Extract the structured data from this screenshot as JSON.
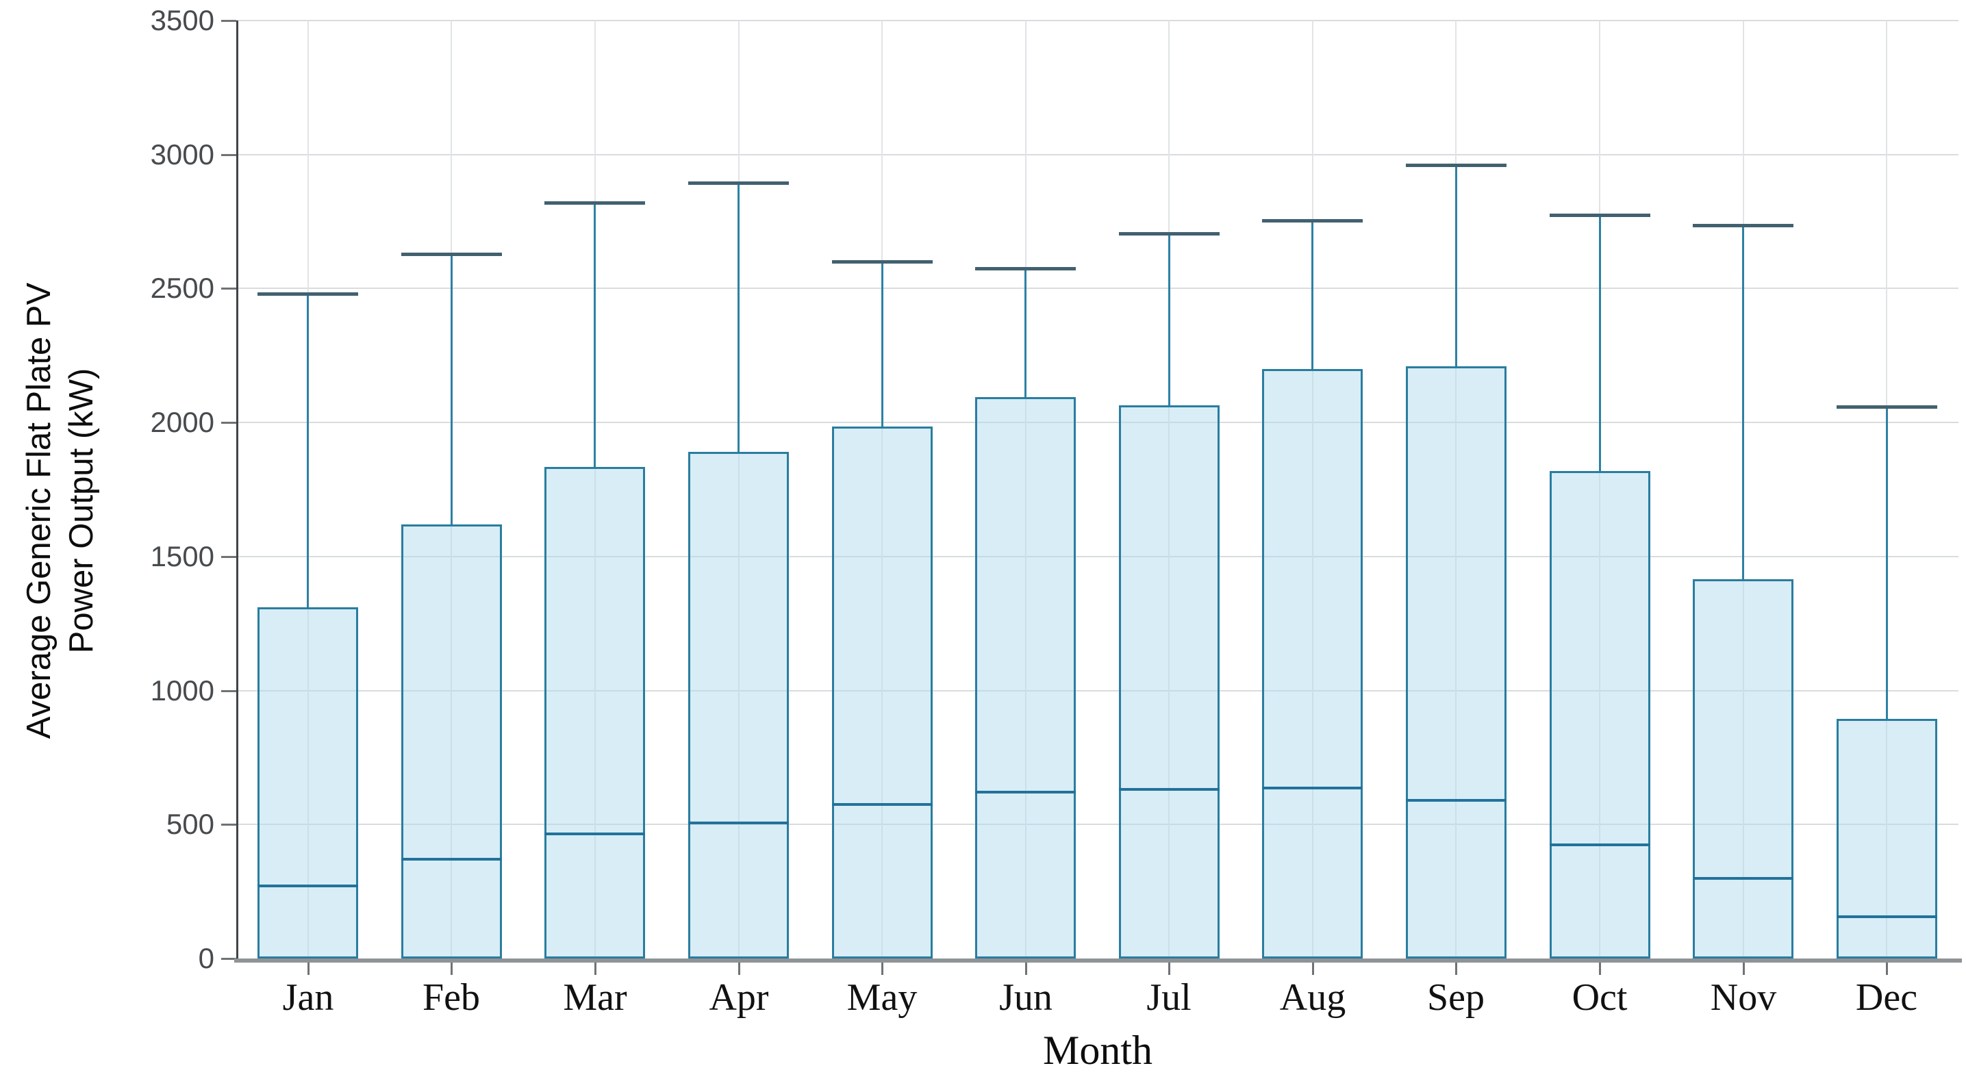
{
  "chart_data": {
    "type": "bar",
    "subtype": "column-with-median-and-upper-whisker",
    "title": "",
    "xlabel": "Month",
    "ylabel_line1": "Average Generic Flat Plate PV",
    "ylabel_line2": "Power Output (kW)",
    "ylim": [
      0,
      3500
    ],
    "y_ticks": [
      0,
      500,
      1000,
      1500,
      2000,
      2500,
      3000,
      3500
    ],
    "grid": true,
    "legend": "none",
    "categories": [
      "Jan",
      "Feb",
      "Mar",
      "Apr",
      "May",
      "Jun",
      "Jul",
      "Aug",
      "Sep",
      "Oct",
      "Nov",
      "Dec"
    ],
    "series": [
      {
        "name": "box_top_kw",
        "values": [
          1310,
          1620,
          1835,
          1890,
          1985,
          2095,
          2065,
          2200,
          2210,
          1820,
          1415,
          895
        ]
      },
      {
        "name": "median_kw",
        "values": [
          270,
          370,
          465,
          505,
          575,
          620,
          630,
          635,
          590,
          425,
          300,
          155
        ]
      },
      {
        "name": "whisker_high_kw",
        "values": [
          2480,
          2630,
          2820,
          2895,
          2600,
          2575,
          2705,
          2755,
          2960,
          2775,
          2735,
          2060
        ]
      },
      {
        "name": "box_bottom_kw",
        "values": [
          0,
          0,
          0,
          0,
          0,
          0,
          0,
          0,
          0,
          0,
          0,
          0
        ]
      }
    ],
    "colors": {
      "box_fill": "#d8ecf6",
      "box_border": "#2a7da0",
      "median_line": "#21729a",
      "whisker_line": "#2e81a4",
      "whisker_cap": "#42616f",
      "gridline": "#dcdfe1",
      "axis_y": "#3f4447",
      "axis_x": "#8f9396",
      "tick_label": "#474b4e",
      "month_label": "#111111"
    }
  }
}
